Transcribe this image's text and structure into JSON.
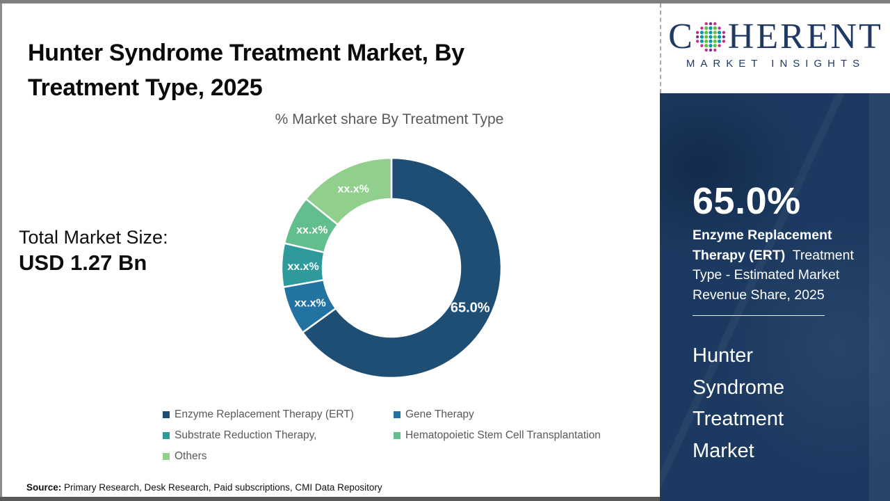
{
  "header": {
    "title": "Hunter Syndrome Treatment Market, By Treatment Type, 2025"
  },
  "logo": {
    "brand_first": "C",
    "brand_rest": "HERENT",
    "tagline": "MARKET INSIGHTS",
    "navy": "#1F3864",
    "sphere_colors": {
      "magenta": "#C0328E",
      "purple": "#7C2F8F",
      "teal": "#0099A8",
      "green": "#68BD45"
    }
  },
  "left": {
    "chart_title": "% Market share By Treatment Type",
    "total_label": "Total Market Size:",
    "total_value": "USD 1.27 Bn",
    "source_label": "Source:",
    "source_text": " Primary Research, Desk Research, Paid subscriptions, CMI Data Repository"
  },
  "chart_data": {
    "type": "pie",
    "variant": "donut",
    "title": "% Market share By Treatment Type",
    "start_angle_deg": 0,
    "direction": "clockwise",
    "legend_position": "bottom",
    "segments": [
      {
        "name": "Enzyme Replacement Therapy (ERT)",
        "label": "65.0%",
        "value": 65.0,
        "color": "#1F4E74"
      },
      {
        "name": "Gene Therapy",
        "label": "xx.x%",
        "value": 7.2,
        "color": "#2273A2"
      },
      {
        "name": "Substrate Reduction Therapy,",
        "label": "xx.x%",
        "value": 6.4,
        "color": "#2F9A9C"
      },
      {
        "name": "Hematopoietic Stem Cell Transplantation",
        "label": "xx.x%",
        "value": 7.2,
        "color": "#63BE8E"
      },
      {
        "name": "Others",
        "label": "xx.x%",
        "value": 14.2,
        "color": "#90D08C"
      }
    ]
  },
  "right_panel": {
    "stat_value": "65.0%",
    "stat_desc_bold": "Enzyme Replacement Therapy (ERT)",
    "stat_desc_rest": "  Treatment Type - Estimated Market Revenue Share, 2025",
    "market_name": "Hunter Syndrome Treatment Market",
    "bg": "#1C3A61"
  }
}
